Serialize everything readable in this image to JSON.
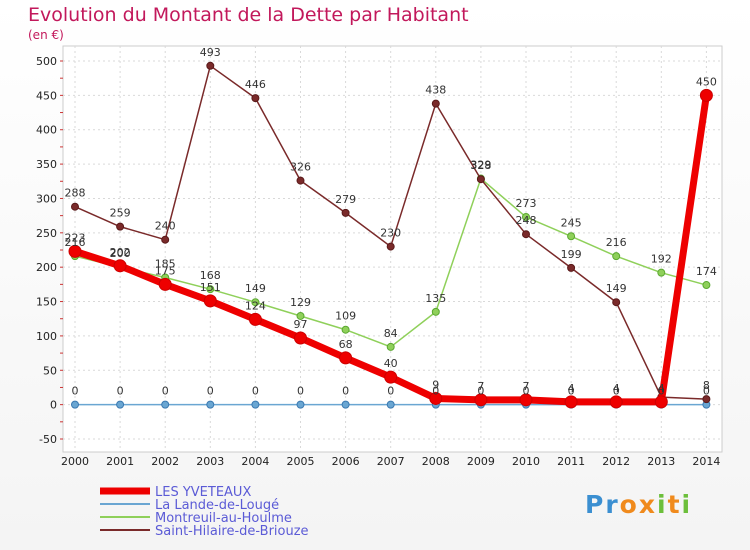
{
  "title": "Evolution du Montant de la Dette par Habitant",
  "subtitle": "(en €)",
  "brand": {
    "letters": [
      "P",
      "r",
      "o",
      "x",
      "i",
      "t",
      "i"
    ],
    "colors": [
      "#3b8fd1",
      "#3b8fd1",
      "#f08a1c",
      "#f08a1c",
      "#6cbf3b",
      "#f08a1c",
      "#6cbf3b"
    ]
  },
  "chart_data": {
    "type": "line",
    "title": "Evolution du Montant de la Dette par Habitant",
    "ylabel": "(en €)",
    "xlabel": "",
    "ylim": [
      -50,
      500
    ],
    "yticks": [
      -50,
      0,
      50,
      100,
      150,
      200,
      250,
      300,
      350,
      400,
      450,
      500
    ],
    "x": [
      "2000",
      "2001",
      "2002",
      "2003",
      "2004",
      "2005",
      "2006",
      "2007",
      "2008",
      "2009",
      "2010",
      "2011",
      "2012",
      "2013",
      "2014"
    ],
    "grid": true,
    "legend_position": "bottom-left",
    "series": [
      {
        "name": "LES YVETEAUX",
        "color": "#ee0000",
        "width": 7,
        "marker": 6,
        "values": [
          223,
          202,
          175,
          151,
          124,
          97,
          68,
          40,
          9,
          7,
          7,
          4,
          4,
          4,
          450
        ],
        "labels": [
          "223",
          "202",
          "175",
          "151",
          "124",
          "97",
          "68",
          "40",
          "9",
          "7",
          "7",
          "4",
          "4",
          "4",
          "450"
        ]
      },
      {
        "name": "La Lande-de-Lougé",
        "color": "#6aa6d2",
        "width": 1.5,
        "marker": 3.5,
        "values": [
          0,
          0,
          0,
          0,
          0,
          0,
          0,
          0,
          0,
          0,
          0,
          0,
          0,
          0,
          0
        ],
        "labels": [
          "0",
          "0",
          "0",
          "0",
          "0",
          "0",
          "0",
          "0",
          "0",
          "0",
          "0",
          "0",
          "0",
          "0",
          "0"
        ]
      },
      {
        "name": "Montreuil-au-Houlme",
        "color": "#8fd05a",
        "width": 1.5,
        "marker": 3.5,
        "values": [
          216,
          200,
          185,
          168,
          149,
          129,
          109,
          84,
          135,
          329,
          273,
          245,
          216,
          192,
          174
        ],
        "labels": [
          "216",
          "200",
          "185",
          "168",
          "149",
          "129",
          "109",
          "84",
          "135",
          "329",
          "273",
          "245",
          "216",
          "192",
          "174"
        ]
      },
      {
        "name": "Saint-Hilaire-de-Briouze",
        "color": "#7a2a2a",
        "width": 1.5,
        "marker": 3.5,
        "values": [
          288,
          259,
          240,
          493,
          446,
          326,
          279,
          230,
          438,
          328,
          248,
          199,
          149,
          11,
          8
        ],
        "labels": [
          "288",
          "259",
          "240",
          "493",
          "446",
          "326",
          "279",
          "230",
          "438",
          "328",
          "248",
          "199",
          "149",
          "",
          "8"
        ]
      }
    ]
  }
}
